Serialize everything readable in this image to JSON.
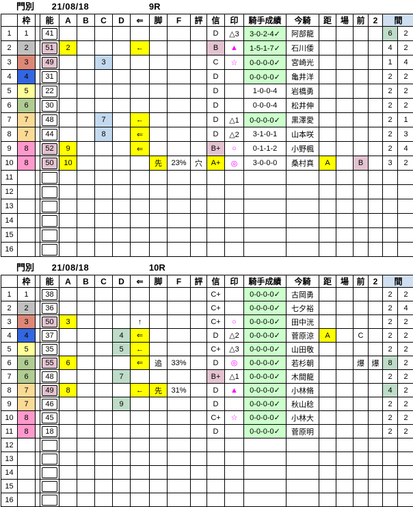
{
  "palette": {
    "highlight_yellow": "#FFFF00",
    "highlight_pink": "#E3C3D0",
    "highlight_blue": "#C3D9EE",
    "highlight_green": "#BEDCC8",
    "result_green": "#CCFFCC",
    "header_blue": "#CFDFF0",
    "mark_magenta": "#FF00FF",
    "waku_colors": {
      "w1": "#FFFFFF",
      "w2": "#C0C0C0",
      "w3": "#DD8877",
      "w4": "#3366E0",
      "w5": "#FFFF99",
      "w6": "#B0CC92",
      "w7": "#FBDA96",
      "w8": "#FF99CC"
    }
  },
  "tables": [
    {
      "title": {
        "track": "門別",
        "date": "21/08/18",
        "race": "9R"
      },
      "columns": [
        "",
        "枠",
        "",
        "能",
        "A",
        "B",
        "C",
        "D",
        "⇐",
        "脚",
        "F",
        "評",
        "信",
        "印",
        "騎手成績",
        "今騎",
        "距",
        "場",
        "前",
        "2",
        "間"
      ],
      "rows": [
        [
          "1",
          "1",
          "",
          "41",
          "",
          "",
          "",
          "",
          "",
          "",
          "",
          "",
          "D",
          {
            "t": "△3"
          },
          {
            "t": "3-0-2-4✓",
            "bg": "R"
          },
          "阿部龍",
          "",
          "",
          "",
          "",
          {
            "t": "6",
            "bg": "G"
          },
          "2"
        ],
        [
          "2",
          {
            "t": "2",
            "bg": "w2"
          },
          "",
          {
            "t": "51",
            "bg": "P"
          },
          {
            "t": "2",
            "bg": "Y"
          },
          "",
          "",
          "",
          {
            "t": "←",
            "bg": "Y"
          },
          "",
          "",
          "",
          {
            "t": "B",
            "bg": "P"
          },
          {
            "t": "▲",
            "fg": "M"
          },
          {
            "t": "1-5-1-7✓",
            "bg": "R"
          },
          "石川倭",
          "",
          "",
          "",
          "",
          "4",
          "2"
        ],
        [
          "3",
          {
            "t": "3",
            "bg": "w3"
          },
          "",
          {
            "t": "49",
            "bg": "P"
          },
          "",
          "",
          {
            "t": "3",
            "bg": "B"
          },
          "",
          "",
          "",
          "",
          "",
          "C",
          {
            "t": "☆",
            "fg": "M"
          },
          {
            "t": "0-0-0-0✓",
            "bg": "R"
          },
          "宮崎光",
          "",
          "",
          "",
          "",
          "1",
          "4"
        ],
        [
          "4",
          {
            "t": "4",
            "bg": "w4"
          },
          "",
          "31",
          "",
          "",
          "",
          "",
          "",
          "",
          "",
          "",
          "D",
          "",
          {
            "t": "0-0-0-0✓",
            "bg": "R"
          },
          "亀井洋",
          "",
          "",
          "",
          "",
          "2",
          "2"
        ],
        [
          "5",
          {
            "t": "5",
            "bg": "w5"
          },
          "",
          "22",
          "",
          "",
          "",
          "",
          "",
          "",
          "",
          "",
          "D",
          "",
          {
            "t": "1-0-0-4"
          },
          "岩橋勇",
          "",
          "",
          "",
          "",
          "2",
          "2"
        ],
        [
          "6",
          {
            "t": "6",
            "bg": "w6"
          },
          "",
          "30",
          "",
          "",
          "",
          "",
          "",
          "",
          "",
          "",
          "D",
          "",
          {
            "t": "0-0-0-4"
          },
          "松井伸",
          "",
          "",
          "",
          "",
          "2",
          "2"
        ],
        [
          "7",
          {
            "t": "7",
            "bg": "w7"
          },
          "",
          "48",
          "",
          "",
          {
            "t": "7",
            "bg": "B"
          },
          "",
          {
            "t": "←",
            "bg": "Y"
          },
          "",
          "",
          "",
          "D",
          {
            "t": "△1"
          },
          {
            "t": "0-0-0-0✓",
            "bg": "R"
          },
          "黒澤愛",
          "",
          "",
          "",
          "",
          "2",
          "1"
        ],
        [
          "8",
          {
            "t": "7",
            "bg": "w7"
          },
          "",
          "44",
          "",
          "",
          {
            "t": "8",
            "bg": "B"
          },
          "",
          {
            "t": "⇐",
            "bg": "Y"
          },
          "",
          "",
          "",
          "D",
          {
            "t": "△2"
          },
          {
            "t": "3-1-0-1"
          },
          "山本咲",
          "",
          "",
          "",
          "",
          "2",
          "3"
        ],
        [
          "9",
          {
            "t": "8",
            "bg": "w8"
          },
          "",
          {
            "t": "52",
            "bg": "P"
          },
          {
            "t": "9",
            "bg": "Y"
          },
          "",
          "",
          "",
          {
            "t": "⇐",
            "bg": "Y"
          },
          "",
          "",
          "",
          {
            "t": "B+",
            "bg": "P"
          },
          {
            "t": "○",
            "fg": "M"
          },
          {
            "t": "0-1-1-2"
          },
          "小野楓",
          "",
          "",
          "",
          "",
          "2",
          "4"
        ],
        [
          "10",
          {
            "t": "8",
            "bg": "w8"
          },
          "",
          {
            "t": "50",
            "bg": "P"
          },
          {
            "t": "10",
            "bg": "Y"
          },
          "",
          "",
          "",
          "",
          {
            "t": "先",
            "bg": "Y"
          },
          "23%",
          "穴",
          {
            "t": "A+",
            "bg": "Y"
          },
          {
            "t": "◎",
            "fg": "M"
          },
          {
            "t": "3-0-0-0"
          },
          "桑村真",
          {
            "t": "A",
            "bg": "Y"
          },
          "",
          {
            "t": "B",
            "bg": "P"
          },
          "",
          "3",
          "2"
        ],
        [
          "11",
          "",
          "",
          "",
          "",
          "",
          "",
          "",
          "",
          "",
          "",
          "",
          "",
          "",
          "",
          "",
          "",
          "",
          "",
          "",
          "",
          ""
        ],
        [
          "12",
          "",
          "",
          "",
          "",
          "",
          "",
          "",
          "",
          "",
          "",
          "",
          "",
          "",
          "",
          "",
          "",
          "",
          "",
          "",
          "",
          ""
        ],
        [
          "13",
          "",
          "",
          "",
          "",
          "",
          "",
          "",
          "",
          "",
          "",
          "",
          "",
          "",
          "",
          "",
          "",
          "",
          "",
          "",
          "",
          ""
        ],
        [
          "14",
          "",
          "",
          "",
          "",
          "",
          "",
          "",
          "",
          "",
          "",
          "",
          "",
          "",
          "",
          "",
          "",
          "",
          "",
          "",
          "",
          ""
        ],
        [
          "15",
          "",
          "",
          "",
          "",
          "",
          "",
          "",
          "",
          "",
          "",
          "",
          "",
          "",
          "",
          "",
          "",
          "",
          "",
          "",
          "",
          ""
        ],
        [
          "16",
          "",
          "",
          "",
          "",
          "",
          "",
          "",
          "",
          "",
          "",
          "",
          "",
          "",
          "",
          "",
          "",
          "",
          "",
          "",
          "",
          ""
        ]
      ]
    },
    {
      "title": {
        "track": "門別",
        "date": "21/08/18",
        "race": "10R"
      },
      "columns": [
        "",
        "枠",
        "",
        "能",
        "A",
        "B",
        "C",
        "D",
        "⇐",
        "脚",
        "F",
        "評",
        "信",
        "印",
        "騎手成績",
        "今騎",
        "距",
        "場",
        "前",
        "2",
        "間"
      ],
      "rows": [
        [
          "1",
          "1",
          "",
          "38",
          "",
          "",
          "",
          "",
          "",
          "",
          "",
          "",
          "C+",
          "",
          {
            "t": "0-0-0-0✓",
            "bg": "R"
          },
          "古岡勇",
          "",
          "",
          "",
          "",
          "2",
          "2"
        ],
        [
          "2",
          {
            "t": "2",
            "bg": "w2"
          },
          "",
          "36",
          "",
          "",
          "",
          "",
          "",
          "",
          "",
          "",
          "C+",
          "",
          {
            "t": "0-0-0-0✓",
            "bg": "R"
          },
          "七夕裕",
          "",
          "",
          "",
          "",
          "2",
          "4"
        ],
        [
          "3",
          {
            "t": "3",
            "bg": "w3"
          },
          "",
          {
            "t": "50",
            "bg": "P"
          },
          {
            "t": "3",
            "bg": "Y"
          },
          "",
          "",
          "",
          {
            "t": "↑"
          },
          "",
          "",
          "",
          "C+",
          {
            "t": "○",
            "fg": "M"
          },
          {
            "t": "0-0-0-0✓",
            "bg": "R"
          },
          "田中洸",
          "",
          "",
          "",
          "",
          "2",
          "2"
        ],
        [
          "4",
          {
            "t": "4",
            "bg": "w4"
          },
          "",
          "37",
          "",
          "",
          "",
          {
            "t": "4",
            "bg": "G"
          },
          {
            "t": "⇐",
            "bg": "Y"
          },
          "",
          "",
          "",
          "D",
          {
            "t": "△2"
          },
          {
            "t": "0-0-0-0✓",
            "bg": "R"
          },
          "菅原涼",
          {
            "t": "A",
            "bg": "Y"
          },
          "",
          "C",
          "",
          "2",
          "2"
        ],
        [
          "5",
          {
            "t": "5",
            "bg": "w5"
          },
          "",
          "35",
          "",
          "",
          "",
          {
            "t": "5",
            "bg": "G"
          },
          {
            "t": "←",
            "bg": "Y"
          },
          "",
          "",
          "",
          "C+",
          {
            "t": "△3"
          },
          {
            "t": "0-0-0-0✓",
            "bg": "R"
          },
          "山田敬",
          "",
          "",
          "",
          "",
          "2",
          "2"
        ],
        [
          "6",
          {
            "t": "6",
            "bg": "w6"
          },
          "",
          {
            "t": "55",
            "bg": "P"
          },
          {
            "t": "6",
            "bg": "Y"
          },
          "",
          "",
          "",
          {
            "t": "⇐",
            "bg": "Y"
          },
          "追",
          "33%",
          "",
          "D",
          {
            "t": "◎",
            "fg": "M"
          },
          {
            "t": "0-0-0-0✓",
            "bg": "R"
          },
          "若杉朝",
          "",
          "",
          "爆",
          "爆",
          {
            "t": "8",
            "bg": "G"
          },
          "2"
        ],
        [
          "7",
          {
            "t": "6",
            "bg": "w6"
          },
          "",
          "48",
          "",
          "",
          "",
          {
            "t": "7",
            "bg": "G"
          },
          "",
          "",
          "",
          "",
          {
            "t": "B+",
            "bg": "P"
          },
          {
            "t": "△1"
          },
          {
            "t": "0-0-0-0✓",
            "bg": "R"
          },
          "木間龍",
          "",
          "",
          "",
          "",
          "2",
          "2"
        ],
        [
          "8",
          {
            "t": "7",
            "bg": "w7"
          },
          "",
          {
            "t": "49",
            "bg": "P"
          },
          {
            "t": "8",
            "bg": "Y"
          },
          "",
          "",
          "",
          {
            "t": "←",
            "bg": "Y"
          },
          {
            "t": "先",
            "bg": "Y"
          },
          "31%",
          "",
          "D",
          {
            "t": "▲",
            "fg": "M"
          },
          {
            "t": "0-0-0-0✓",
            "bg": "R"
          },
          "小林脩",
          "",
          "",
          "",
          "",
          {
            "t": "4",
            "bg": "G"
          },
          "2"
        ],
        [
          "9",
          {
            "t": "7",
            "bg": "w7"
          },
          "",
          "46",
          "",
          "",
          "",
          {
            "t": "9",
            "bg": "G"
          },
          "",
          "",
          "",
          "",
          "D",
          "",
          {
            "t": "0-0-0-0✓",
            "bg": "R"
          },
          "秋山稔",
          "",
          "",
          "",
          "",
          "2",
          "2"
        ],
        [
          "10",
          {
            "t": "8",
            "bg": "w8"
          },
          "",
          "45",
          "",
          "",
          "",
          "",
          "",
          "",
          "",
          "",
          "C+",
          {
            "t": "☆",
            "fg": "M"
          },
          {
            "t": "0-0-0-0✓",
            "bg": "R"
          },
          "小林大",
          "",
          "",
          "",
          "",
          "2",
          "2"
        ],
        [
          "11",
          {
            "t": "8",
            "bg": "w8"
          },
          "",
          "18",
          "",
          "",
          "",
          "",
          "",
          "",
          "",
          "",
          "D",
          "",
          {
            "t": "0-0-0-0✓",
            "bg": "R"
          },
          "菅原明",
          "",
          "",
          "",
          "",
          "2",
          "2"
        ],
        [
          "12",
          "",
          "",
          "",
          "",
          "",
          "",
          "",
          "",
          "",
          "",
          "",
          "",
          "",
          "",
          "",
          "",
          "",
          "",
          "",
          "",
          ""
        ],
        [
          "13",
          "",
          "",
          "",
          "",
          "",
          "",
          "",
          "",
          "",
          "",
          "",
          "",
          "",
          "",
          "",
          "",
          "",
          "",
          "",
          "",
          ""
        ],
        [
          "14",
          "",
          "",
          "",
          "",
          "",
          "",
          "",
          "",
          "",
          "",
          "",
          "",
          "",
          "",
          "",
          "",
          "",
          "",
          "",
          "",
          ""
        ],
        [
          "15",
          "",
          "",
          "",
          "",
          "",
          "",
          "",
          "",
          "",
          "",
          "",
          "",
          "",
          "",
          "",
          "",
          "",
          "",
          "",
          "",
          ""
        ],
        [
          "16",
          "",
          "",
          "",
          "",
          "",
          "",
          "",
          "",
          "",
          "",
          "",
          "",
          "",
          "",
          "",
          "",
          "",
          "",
          "",
          "",
          ""
        ]
      ]
    }
  ]
}
